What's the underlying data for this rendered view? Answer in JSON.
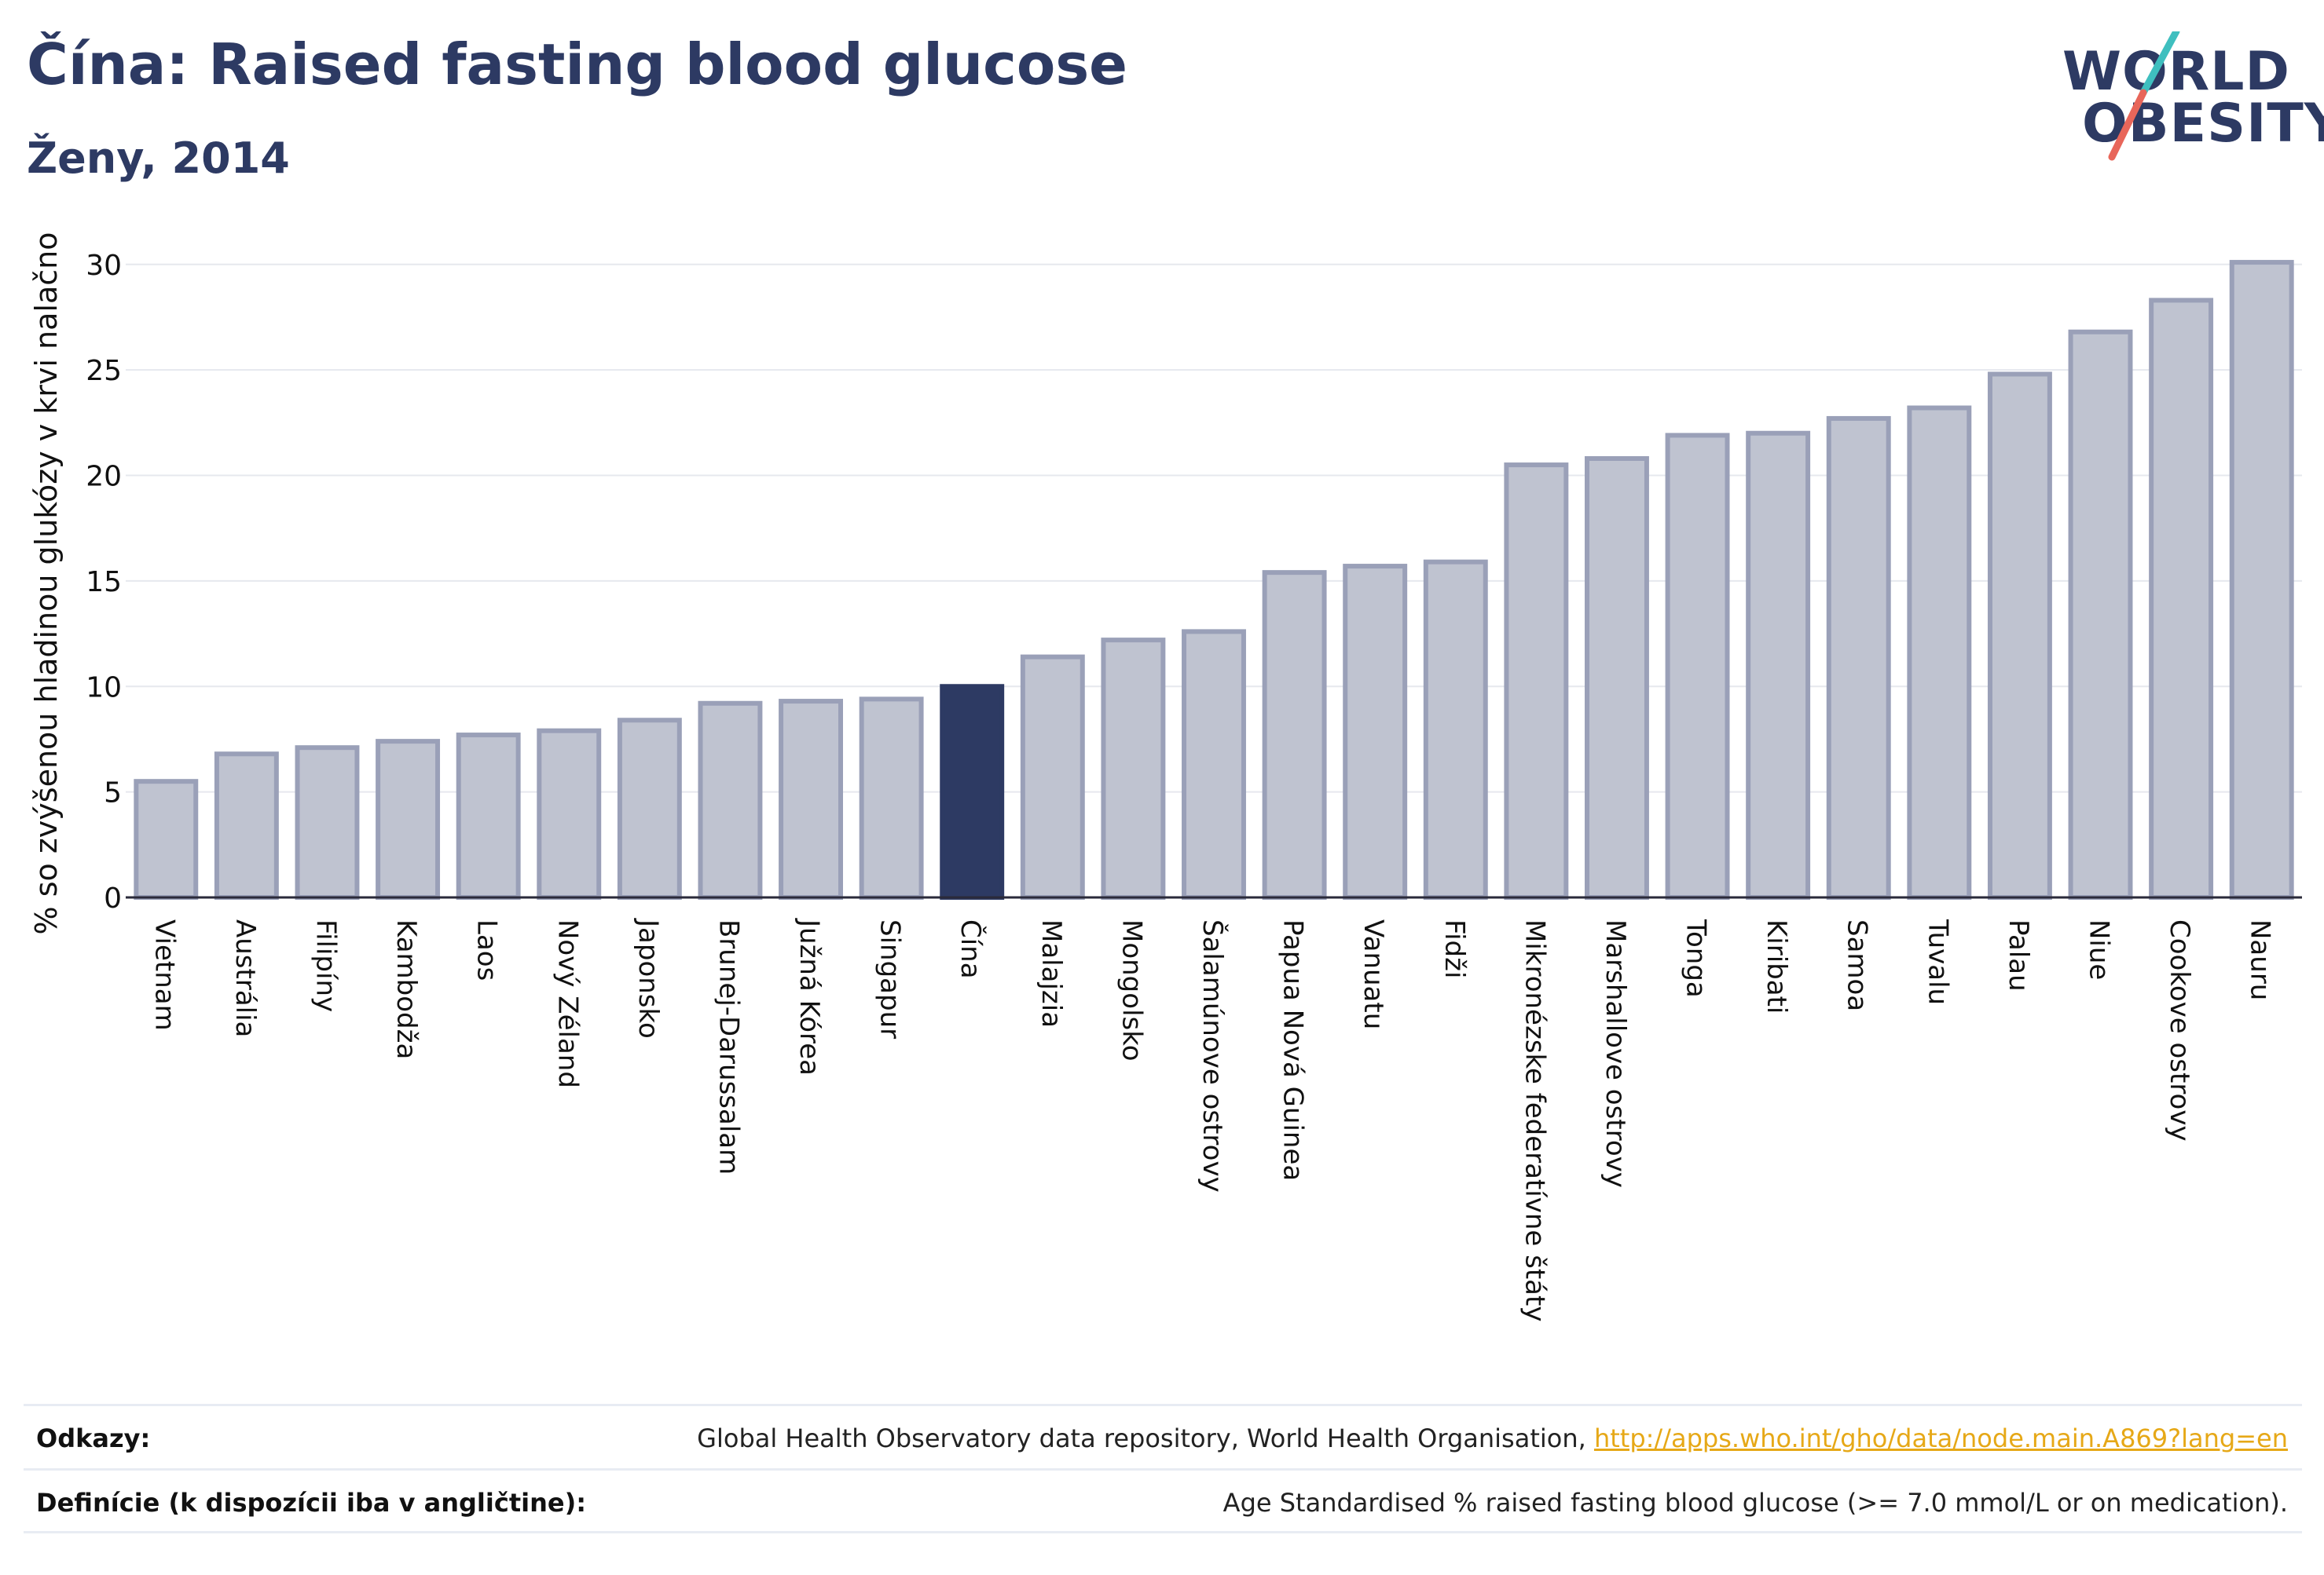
{
  "header": {
    "title": "Čína: Raised fasting blood glucose",
    "subtitle": "Ženy, 2014"
  },
  "logo": {
    "line1": "WORLD",
    "line2": "OBESITY",
    "colors": {
      "text": "#2d3a63",
      "slash_top": "#3fbfbf",
      "slash_bottom": "#e8665a"
    }
  },
  "chart_data": {
    "type": "bar",
    "ylabel": "% so zvýšenou hladinou glukózy v krvi nalačno",
    "xlabel": "",
    "ylim": [
      0,
      32
    ],
    "yticks": [
      0,
      5,
      10,
      15,
      20,
      25,
      30
    ],
    "grid": true,
    "highlight": "Čína",
    "colors": {
      "bar": "#bfc3d0",
      "bar_border": "#9aa0b8",
      "highlight": "#2d3a63"
    },
    "categories": [
      "Vietnam",
      "Austrália",
      "Filipíny",
      "Kambodža",
      "Laos",
      "Nový Zéland",
      "Japonsko",
      "Brunej-Darussalam",
      "Južná Kórea",
      "Singapur",
      "Čína",
      "Malajzia",
      "Mongolsko",
      "Šalamúnove ostrovy",
      "Papua Nová Guinea",
      "Vanuatu",
      "Fidži",
      "Mikronézske federatívne štáty",
      "Marshallove ostrovy",
      "Tonga",
      "Kiribati",
      "Samoa",
      "Tuvalu",
      "Palau",
      "Niue",
      "Cookove ostrovy",
      "Nauru"
    ],
    "values": [
      5.5,
      6.8,
      7.1,
      7.4,
      7.7,
      7.9,
      8.4,
      9.2,
      9.3,
      9.4,
      10.0,
      11.4,
      12.2,
      12.6,
      15.4,
      15.7,
      15.9,
      20.5,
      20.8,
      21.9,
      22.0,
      22.7,
      23.2,
      24.8,
      26.8,
      28.3,
      30.1
    ]
  },
  "footer": {
    "sources_label": "Odkazy:",
    "sources_text": "Global Health Observatory data repository, World Health Organisation, ",
    "sources_link": "http://apps.who.int/gho/data/node.main.A869?lang=en",
    "definitions_label": "Definície (k dispozícii iba v angličtine):",
    "definitions_text": "Age Standardised % raised fasting blood glucose (>= 7.0 mmol/L or on medication)."
  }
}
